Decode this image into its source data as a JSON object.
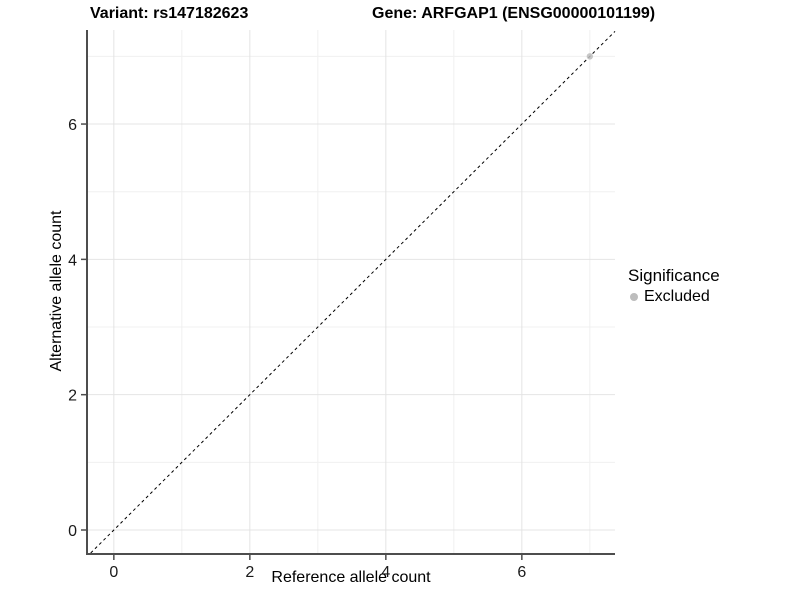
{
  "chart_data": {
    "type": "scatter",
    "title_left": "Variant: rs147182623",
    "title_right": "Gene: ARFGAP1 (ENSG00000101199)",
    "xlabel": "Reference allele count",
    "ylabel": "Alternative allele count",
    "xlim": [
      -0.38,
      7.37
    ],
    "ylim": [
      -0.34,
      7.39
    ],
    "x_ticks": [
      0,
      2,
      4,
      6
    ],
    "y_ticks": [
      0,
      2,
      4,
      6
    ],
    "x_minor_ticks": [
      1,
      3,
      5,
      7
    ],
    "y_minor_ticks": [
      1,
      3,
      5,
      7
    ],
    "grid": true,
    "legend_position": "right",
    "identity_line": {
      "style": "dashed",
      "color": "#000000"
    },
    "series": [
      {
        "name": "Excluded",
        "color": "#bdbdbd",
        "points": [
          {
            "x": 7,
            "y": 7
          }
        ]
      }
    ],
    "legend": {
      "title": "Significance",
      "items": [
        {
          "label": "Excluded",
          "color": "#bdbdbd"
        }
      ]
    },
    "colors": {
      "grid_major": "#e4e4e4",
      "grid_minor": "#f0f0f0",
      "axis_line": "#4d4d4d",
      "tick_text": "#1a1a1a",
      "point": "#bdbdbd"
    }
  }
}
